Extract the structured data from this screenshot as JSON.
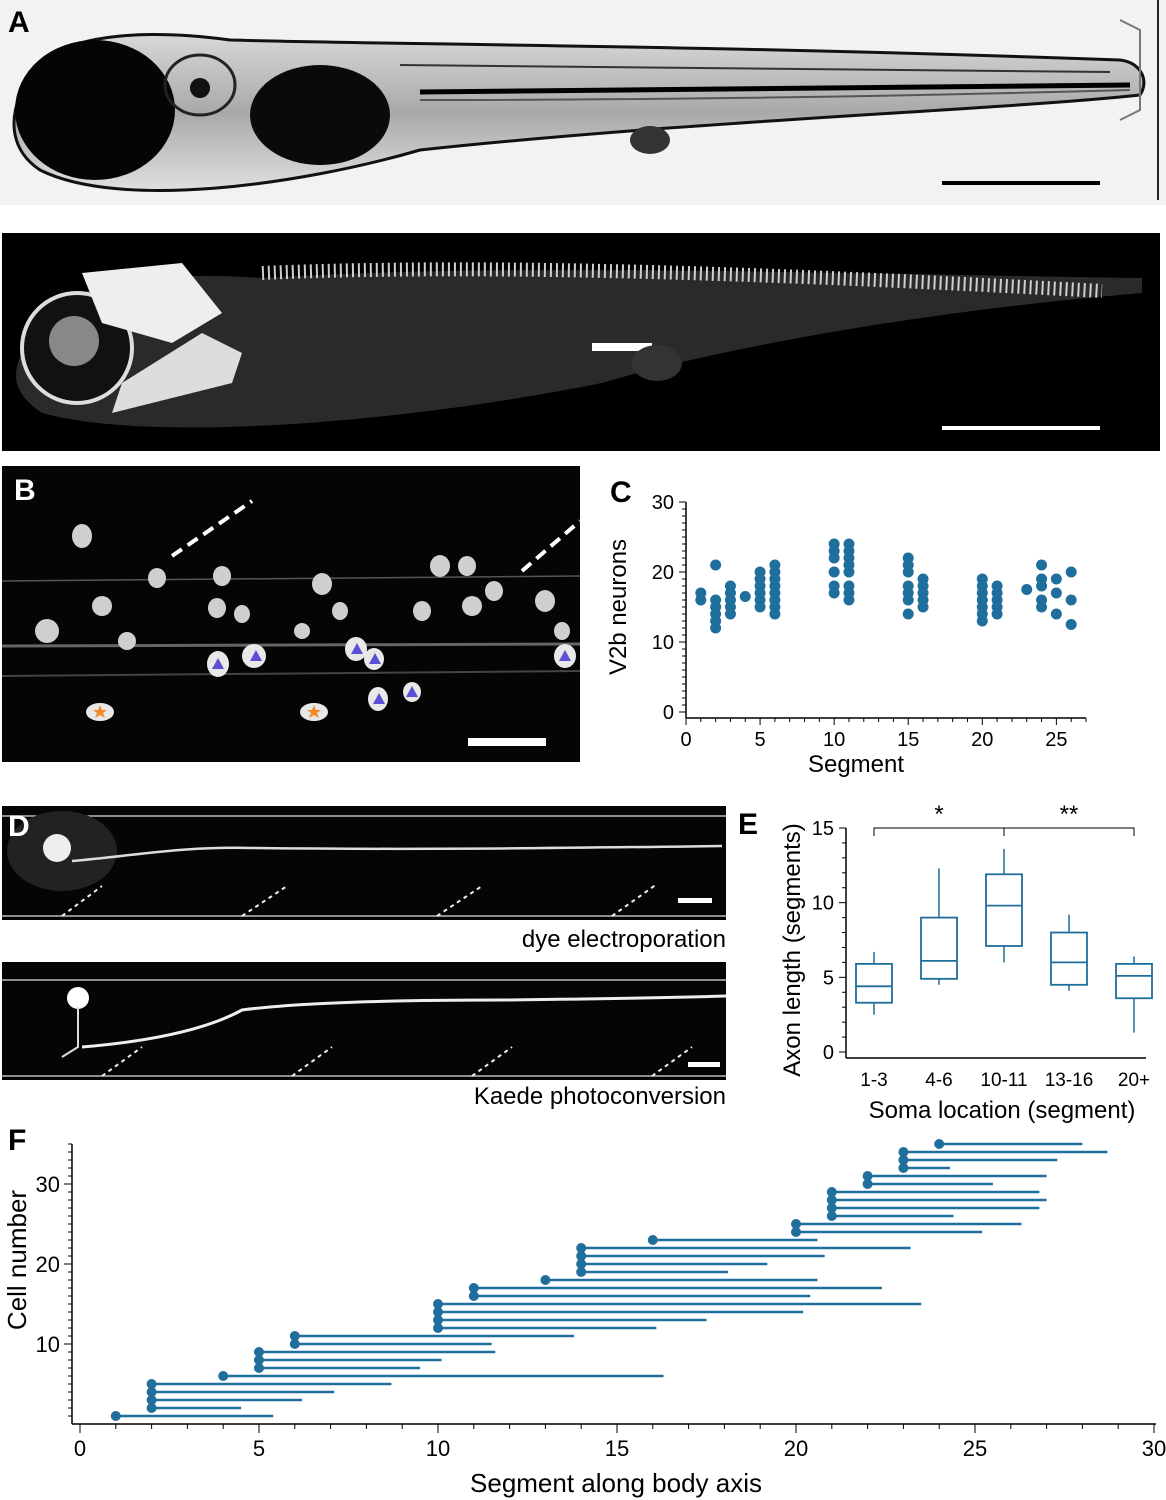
{
  "panels": {
    "A": {
      "letter": "A"
    },
    "B": {
      "letter": "B"
    },
    "C": {
      "letter": "C"
    },
    "D": {
      "letter": "D",
      "caption_top": "dye electroporation",
      "caption_bottom": "Kaede photoconversion"
    },
    "E": {
      "letter": "E"
    },
    "F": {
      "letter": "F"
    }
  },
  "colors": {
    "accent": "#1f6e9c",
    "triangle": "#5b4fd6",
    "star": "#f08a2c"
  },
  "chart_data": [
    {
      "panel": "C",
      "type": "scatter",
      "xlabel": "Segment",
      "ylabel": "V2b neurons",
      "xlim": [
        0,
        27
      ],
      "ylim": [
        0,
        30
      ],
      "xticks": [
        0,
        5,
        10,
        15,
        20,
        25
      ],
      "yticks": [
        0,
        10,
        20,
        30
      ],
      "points": [
        [
          1,
          17
        ],
        [
          1,
          16
        ],
        [
          2,
          21
        ],
        [
          2,
          16
        ],
        [
          2,
          15
        ],
        [
          2,
          14
        ],
        [
          2,
          13
        ],
        [
          2,
          12
        ],
        [
          3,
          18
        ],
        [
          3,
          17
        ],
        [
          3,
          16
        ],
        [
          3,
          15
        ],
        [
          3,
          14
        ],
        [
          4,
          16.5
        ],
        [
          5,
          20
        ],
        [
          5,
          19
        ],
        [
          5,
          18
        ],
        [
          5,
          17
        ],
        [
          5,
          16
        ],
        [
          5,
          15
        ],
        [
          6,
          21
        ],
        [
          6,
          20
        ],
        [
          6,
          19
        ],
        [
          6,
          18
        ],
        [
          6,
          17
        ],
        [
          6,
          16
        ],
        [
          6,
          15
        ],
        [
          6,
          14
        ],
        [
          10,
          24
        ],
        [
          10,
          23
        ],
        [
          10,
          22
        ],
        [
          10,
          20
        ],
        [
          10,
          18
        ],
        [
          10,
          17
        ],
        [
          11,
          24
        ],
        [
          11,
          23
        ],
        [
          11,
          22
        ],
        [
          11,
          21
        ],
        [
          11,
          20
        ],
        [
          11,
          18
        ],
        [
          11,
          17
        ],
        [
          11,
          16
        ],
        [
          15,
          22
        ],
        [
          15,
          21
        ],
        [
          15,
          20
        ],
        [
          15,
          18
        ],
        [
          15,
          17
        ],
        [
          15,
          16
        ],
        [
          15,
          14
        ],
        [
          16,
          19
        ],
        [
          16,
          18
        ],
        [
          16,
          17
        ],
        [
          16,
          16
        ],
        [
          16,
          15
        ],
        [
          20,
          19
        ],
        [
          20,
          18
        ],
        [
          20,
          17
        ],
        [
          20,
          16
        ],
        [
          20,
          15
        ],
        [
          20,
          14
        ],
        [
          20,
          13
        ],
        [
          21,
          18
        ],
        [
          21,
          17
        ],
        [
          21,
          16
        ],
        [
          21,
          15
        ],
        [
          21,
          14
        ],
        [
          23,
          17.5
        ],
        [
          24,
          21
        ],
        [
          24,
          19
        ],
        [
          24,
          18
        ],
        [
          24,
          16
        ],
        [
          24,
          15
        ],
        [
          25,
          19
        ],
        [
          25,
          17
        ],
        [
          25,
          14
        ],
        [
          26,
          20
        ],
        [
          26,
          16
        ],
        [
          26,
          12.5
        ]
      ]
    },
    {
      "panel": "E",
      "type": "box",
      "xlabel": "Soma location (segment)",
      "ylabel": "Axon length (segments)",
      "ylim": [
        0,
        15
      ],
      "yticks": [
        0,
        5,
        10,
        15
      ],
      "categories": [
        "1-3",
        "4-6",
        "10-11",
        "13-16",
        "20+"
      ],
      "boxes": [
        {
          "min": 2.5,
          "q1": 3.3,
          "median": 4.4,
          "q3": 5.9,
          "max": 6.7
        },
        {
          "min": 4.5,
          "q1": 4.9,
          "median": 6.1,
          "q3": 9.0,
          "max": 12.3
        },
        {
          "min": 6.0,
          "q1": 7.1,
          "median": 9.8,
          "q3": 11.9,
          "max": 13.6
        },
        {
          "min": 4.1,
          "q1": 4.5,
          "median": 6.0,
          "q3": 8.0,
          "max": 9.2
        },
        {
          "min": 1.3,
          "q1": 3.6,
          "median": 5.1,
          "q3": 5.9,
          "max": 6.4
        }
      ],
      "significance": [
        {
          "from": "1-3",
          "to": "10-11",
          "label": "*"
        },
        {
          "from": "10-11",
          "to": "20+",
          "label": "**"
        }
      ]
    },
    {
      "panel": "F",
      "type": "range",
      "xlabel": "Segment along body axis",
      "ylabel": "Cell number",
      "xlim": [
        0,
        30
      ],
      "ylim": [
        0.5,
        35
      ],
      "xticks": [
        0,
        5,
        10,
        15,
        20,
        25,
        30
      ],
      "yticks": [
        10,
        20,
        30
      ],
      "cells": [
        [
          1,
          5.4
        ],
        [
          2,
          4.5
        ],
        [
          2,
          6.2
        ],
        [
          2,
          7.1
        ],
        [
          2,
          8.7
        ],
        [
          4,
          16.3
        ],
        [
          5,
          9.5
        ],
        [
          5,
          10.1
        ],
        [
          5,
          11.6
        ],
        [
          6,
          11.5
        ],
        [
          6,
          13.8
        ],
        [
          10,
          16.1
        ],
        [
          10,
          17.5
        ],
        [
          10,
          20.2
        ],
        [
          10,
          23.5
        ],
        [
          11,
          20.4
        ],
        [
          11,
          22.4
        ],
        [
          13,
          20.6
        ],
        [
          14,
          18.1
        ],
        [
          14,
          19.2
        ],
        [
          14,
          20.8
        ],
        [
          14,
          23.2
        ],
        [
          16,
          20.6
        ],
        [
          20,
          25.2
        ],
        [
          20,
          26.3
        ],
        [
          21,
          24.4
        ],
        [
          21,
          26.8
        ],
        [
          21,
          27.0
        ],
        [
          21,
          26.8
        ],
        [
          22,
          25.5
        ],
        [
          22,
          27.0
        ],
        [
          23,
          24.3
        ],
        [
          23,
          27.3
        ],
        [
          23,
          28.7
        ],
        [
          24,
          28.0
        ]
      ]
    }
  ]
}
